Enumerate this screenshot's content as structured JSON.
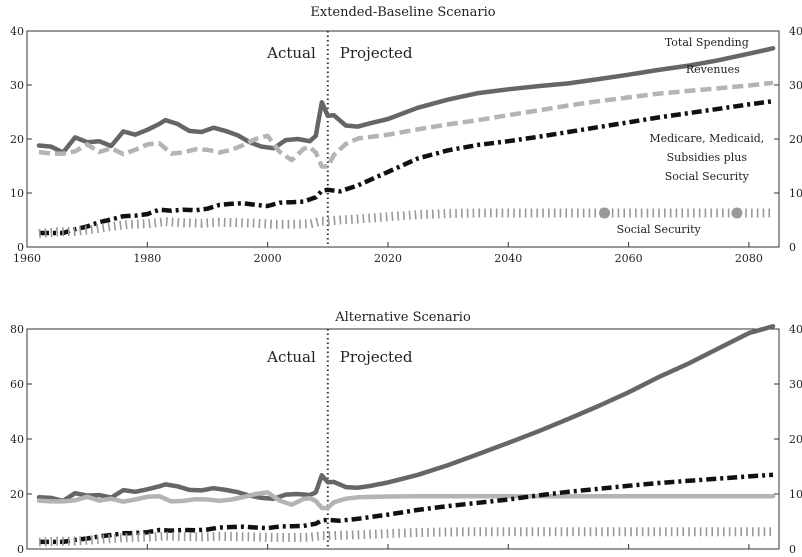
{
  "chart_data": [
    {
      "type": "line",
      "title": "Extended-Baseline Scenario",
      "xlabel": "",
      "ylabel": "",
      "xlim": [
        1960,
        2085
      ],
      "ylim": [
        0,
        40
      ],
      "x_ticks": [
        1960,
        1980,
        2000,
        2020,
        2040,
        2060,
        2080
      ],
      "y_ticks": [
        0,
        10,
        20,
        30,
        40
      ],
      "right_y_ticks": [
        0,
        10,
        20,
        30,
        40
      ],
      "divider_x": 2010,
      "divider_labels": {
        "left": "Actual",
        "right": "Projected"
      },
      "grid": false,
      "legend": "none",
      "series": [
        {
          "name": "Total Spending",
          "color": "#666666",
          "style": "solid",
          "label_pos": {
            "x": 2073,
            "y": 37.2
          },
          "x": [
            1962,
            1964,
            1966,
            1968,
            1970,
            1972,
            1974,
            1976,
            1978,
            1980,
            1982,
            1983,
            1985,
            1987,
            1989,
            1991,
            1993,
            1995,
            1997,
            1999,
            2001,
            2003,
            2005,
            2007,
            2008,
            2009,
            2010,
            2011,
            2013,
            2015,
            2017,
            2020,
            2025,
            2030,
            2035,
            2040,
            2045,
            2050,
            2055,
            2060,
            2065,
            2070,
            2075,
            2080,
            2084
          ],
          "y": [
            18.8,
            18.6,
            17.5,
            20.3,
            19.4,
            19.6,
            18.7,
            21.4,
            20.8,
            21.7,
            22.8,
            23.5,
            22.8,
            21.5,
            21.3,
            22.1,
            21.5,
            20.7,
            19.4,
            18.6,
            18.3,
            19.8,
            20.0,
            19.6,
            20.6,
            26.8,
            24.3,
            24.4,
            22.5,
            22.3,
            22.9,
            23.7,
            25.8,
            27.3,
            28.5,
            29.2,
            29.8,
            30.3,
            31.1,
            31.9,
            32.8,
            33.6,
            34.6,
            35.8,
            36.8
          ]
        },
        {
          "name": "Revenues",
          "color": "#b4b4b4",
          "style": "dashed",
          "label_pos": {
            "x": 2074,
            "y": 32.2
          },
          "x": [
            1962,
            1964,
            1966,
            1968,
            1970,
            1972,
            1974,
            1976,
            1978,
            1980,
            1982,
            1984,
            1986,
            1988,
            1990,
            1992,
            1994,
            1996,
            1998,
            2000,
            2002,
            2004,
            2006,
            2007,
            2008,
            2009,
            2010,
            2011,
            2013,
            2015,
            2020,
            2025,
            2030,
            2035,
            2040,
            2045,
            2050,
            2055,
            2060,
            2065,
            2070,
            2075,
            2080,
            2084
          ],
          "y": [
            17.6,
            17.3,
            17.3,
            17.7,
            19.0,
            17.6,
            18.3,
            17.2,
            18.0,
            19.0,
            19.2,
            17.3,
            17.5,
            18.1,
            18.0,
            17.5,
            18.0,
            18.9,
            20.0,
            20.6,
            17.6,
            16.1,
            18.2,
            18.5,
            17.5,
            14.9,
            14.9,
            17.0,
            19.1,
            20.1,
            20.8,
            21.8,
            22.7,
            23.5,
            24.4,
            25.3,
            26.2,
            27.0,
            27.7,
            28.4,
            28.9,
            29.4,
            29.9,
            30.4
          ]
        },
        {
          "name": "Medicare, Medicaid, Subsidies plus Social Security",
          "label_lines": [
            "Medicare, Medicaid,",
            "Subsidies plus",
            "Social Security"
          ],
          "color": "#111111",
          "style": "dashdot",
          "label_pos": {
            "x": 2073,
            "y": 19.4
          },
          "x": [
            1962,
            1964,
            1966,
            1968,
            1970,
            1972,
            1974,
            1976,
            1978,
            1980,
            1982,
            1984,
            1986,
            1988,
            1990,
            1992,
            1994,
            1996,
            1998,
            2000,
            2002,
            2004,
            2006,
            2008,
            2009,
            2010,
            2012,
            2015,
            2020,
            2025,
            2030,
            2035,
            2040,
            2045,
            2050,
            2055,
            2060,
            2065,
            2070,
            2075,
            2080,
            2084
          ],
          "y": [
            2.6,
            2.6,
            2.6,
            3.3,
            3.8,
            4.6,
            5.1,
            5.7,
            5.8,
            6.1,
            6.9,
            6.7,
            6.9,
            6.8,
            7.1,
            7.8,
            8.0,
            8.1,
            7.8,
            7.6,
            8.2,
            8.3,
            8.4,
            9.2,
            10.4,
            10.6,
            10.3,
            11.4,
            13.9,
            16.4,
            17.9,
            18.9,
            19.6,
            20.4,
            21.3,
            22.2,
            23.1,
            24.0,
            24.8,
            25.6,
            26.4,
            27.0
          ]
        },
        {
          "name": "Social Security",
          "color": "#999999",
          "style": "dotted",
          "label_pos": {
            "x": 2065,
            "y": 2.6
          },
          "x": [
            1962,
            1965,
            1968,
            1971,
            1974,
            1977,
            1980,
            1983,
            1986,
            1989,
            1992,
            1995,
            1998,
            2001,
            2004,
            2007,
            2009,
            2010,
            2012,
            2015,
            2020,
            2025,
            2030,
            2035,
            2040,
            2045,
            2050,
            2055,
            2060,
            2065,
            2070,
            2075,
            2080,
            2084
          ],
          "y": [
            2.5,
            2.8,
            2.9,
            3.3,
            3.8,
            4.2,
            4.3,
            4.7,
            4.5,
            4.4,
            4.6,
            4.5,
            4.4,
            4.2,
            4.2,
            4.3,
            4.8,
            4.8,
            5.0,
            5.2,
            5.6,
            6.0,
            6.2,
            6.3,
            6.3,
            6.3,
            6.3,
            6.3,
            6.3,
            6.3,
            6.3,
            6.3,
            6.3,
            6.3
          ]
        }
      ],
      "markers": [
        {
          "color": "#999999",
          "x": 2056,
          "y": 6.3
        },
        {
          "color": "#999999",
          "x": 2078,
          "y": 6.3
        }
      ]
    },
    {
      "type": "line",
      "title": "Alternative Scenario",
      "xlabel": "",
      "ylabel": "",
      "xlim": [
        1960,
        2085
      ],
      "ylim": [
        0,
        80
      ],
      "y_ticks": [
        0,
        20,
        40,
        60,
        80
      ],
      "right_y_ticks": [
        0,
        10,
        20,
        30,
        40
      ],
      "right_y_tick_labels": [
        "0",
        "10",
        "20",
        "30",
        "40"
      ],
      "divider_x": 2010,
      "divider_labels": {
        "left": "Actual",
        "right": "Projected"
      },
      "grid": false,
      "legend": "none",
      "series": [
        {
          "color": "#666666",
          "style": "solid",
          "x": [
            1962,
            1964,
            1966,
            1968,
            1970,
            1972,
            1974,
            1976,
            1978,
            1980,
            1982,
            1983,
            1985,
            1987,
            1989,
            1991,
            1993,
            1995,
            1997,
            1999,
            2001,
            2003,
            2005,
            2007,
            2008,
            2009,
            2010,
            2011,
            2013,
            2015,
            2017,
            2020,
            2025,
            2030,
            2035,
            2040,
            2045,
            2050,
            2055,
            2060,
            2065,
            2070,
            2075,
            2080,
            2084
          ],
          "y": [
            18.8,
            18.6,
            17.5,
            20.3,
            19.4,
            19.6,
            18.7,
            21.4,
            20.8,
            21.7,
            22.8,
            23.5,
            22.8,
            21.5,
            21.3,
            22.1,
            21.5,
            20.7,
            19.4,
            18.6,
            18.3,
            19.8,
            20.0,
            19.6,
            20.6,
            26.8,
            24.3,
            24.4,
            22.5,
            22.3,
            22.9,
            24.2,
            27.0,
            30.5,
            34.5,
            38.6,
            42.8,
            47.3,
            52.0,
            57.0,
            62.5,
            67.5,
            73.0,
            78.5,
            81.0
          ]
        },
        {
          "color": "#b4b4b4",
          "style": "solid",
          "x": [
            1962,
            1964,
            1966,
            1968,
            1970,
            1972,
            1974,
            1976,
            1978,
            1980,
            1982,
            1984,
            1986,
            1988,
            1990,
            1992,
            1994,
            1996,
            1998,
            2000,
            2002,
            2004,
            2006,
            2007,
            2008,
            2009,
            2010,
            2011,
            2013,
            2015,
            2020,
            2025,
            2030,
            2040,
            2050,
            2060,
            2070,
            2080,
            2084
          ],
          "y": [
            17.6,
            17.3,
            17.3,
            17.7,
            19.0,
            17.6,
            18.3,
            17.2,
            18.0,
            19.0,
            19.2,
            17.3,
            17.5,
            18.1,
            18.0,
            17.5,
            18.0,
            18.9,
            20.0,
            20.6,
            17.6,
            16.1,
            18.2,
            18.5,
            17.5,
            14.9,
            14.9,
            17.0,
            18.3,
            18.8,
            19.1,
            19.2,
            19.2,
            19.2,
            19.2,
            19.2,
            19.2,
            19.2,
            19.2
          ]
        },
        {
          "color": "#111111",
          "style": "dashdot",
          "x": [
            1962,
            1964,
            1966,
            1968,
            1970,
            1972,
            1974,
            1976,
            1978,
            1980,
            1982,
            1984,
            1986,
            1988,
            1990,
            1992,
            1994,
            1996,
            1998,
            2000,
            2002,
            2004,
            2006,
            2008,
            2009,
            2010,
            2012,
            2015,
            2020,
            2025,
            2030,
            2035,
            2040,
            2045,
            2050,
            2055,
            2060,
            2065,
            2070,
            2075,
            2080,
            2084
          ],
          "y": [
            2.6,
            2.6,
            2.6,
            3.3,
            3.8,
            4.6,
            5.1,
            5.7,
            5.8,
            6.1,
            6.9,
            6.7,
            6.9,
            6.8,
            7.1,
            7.8,
            8.0,
            8.1,
            7.8,
            7.6,
            8.2,
            8.3,
            8.4,
            9.2,
            10.4,
            10.6,
            10.3,
            11.0,
            12.5,
            14.2,
            15.6,
            16.8,
            18.0,
            19.5,
            20.8,
            21.9,
            23.0,
            24.0,
            24.8,
            25.6,
            26.4,
            27.0
          ]
        },
        {
          "color": "#999999",
          "style": "dotted",
          "x": [
            1962,
            1965,
            1968,
            1971,
            1974,
            1977,
            1980,
            1983,
            1986,
            1989,
            1992,
            1995,
            1998,
            2001,
            2004,
            2007,
            2009,
            2010,
            2012,
            2015,
            2020,
            2025,
            2030,
            2035,
            2040,
            2045,
            2050,
            2055,
            2060,
            2065,
            2070,
            2075,
            2080,
            2084
          ],
          "y": [
            2.5,
            2.8,
            2.9,
            3.3,
            3.8,
            4.2,
            4.3,
            4.7,
            4.5,
            4.4,
            4.6,
            4.5,
            4.4,
            4.2,
            4.2,
            4.3,
            4.8,
            4.8,
            5.0,
            5.2,
            5.6,
            6.0,
            6.2,
            6.3,
            6.3,
            6.3,
            6.3,
            6.3,
            6.3,
            6.3,
            6.3,
            6.3,
            6.3,
            6.3
          ]
        }
      ]
    }
  ]
}
